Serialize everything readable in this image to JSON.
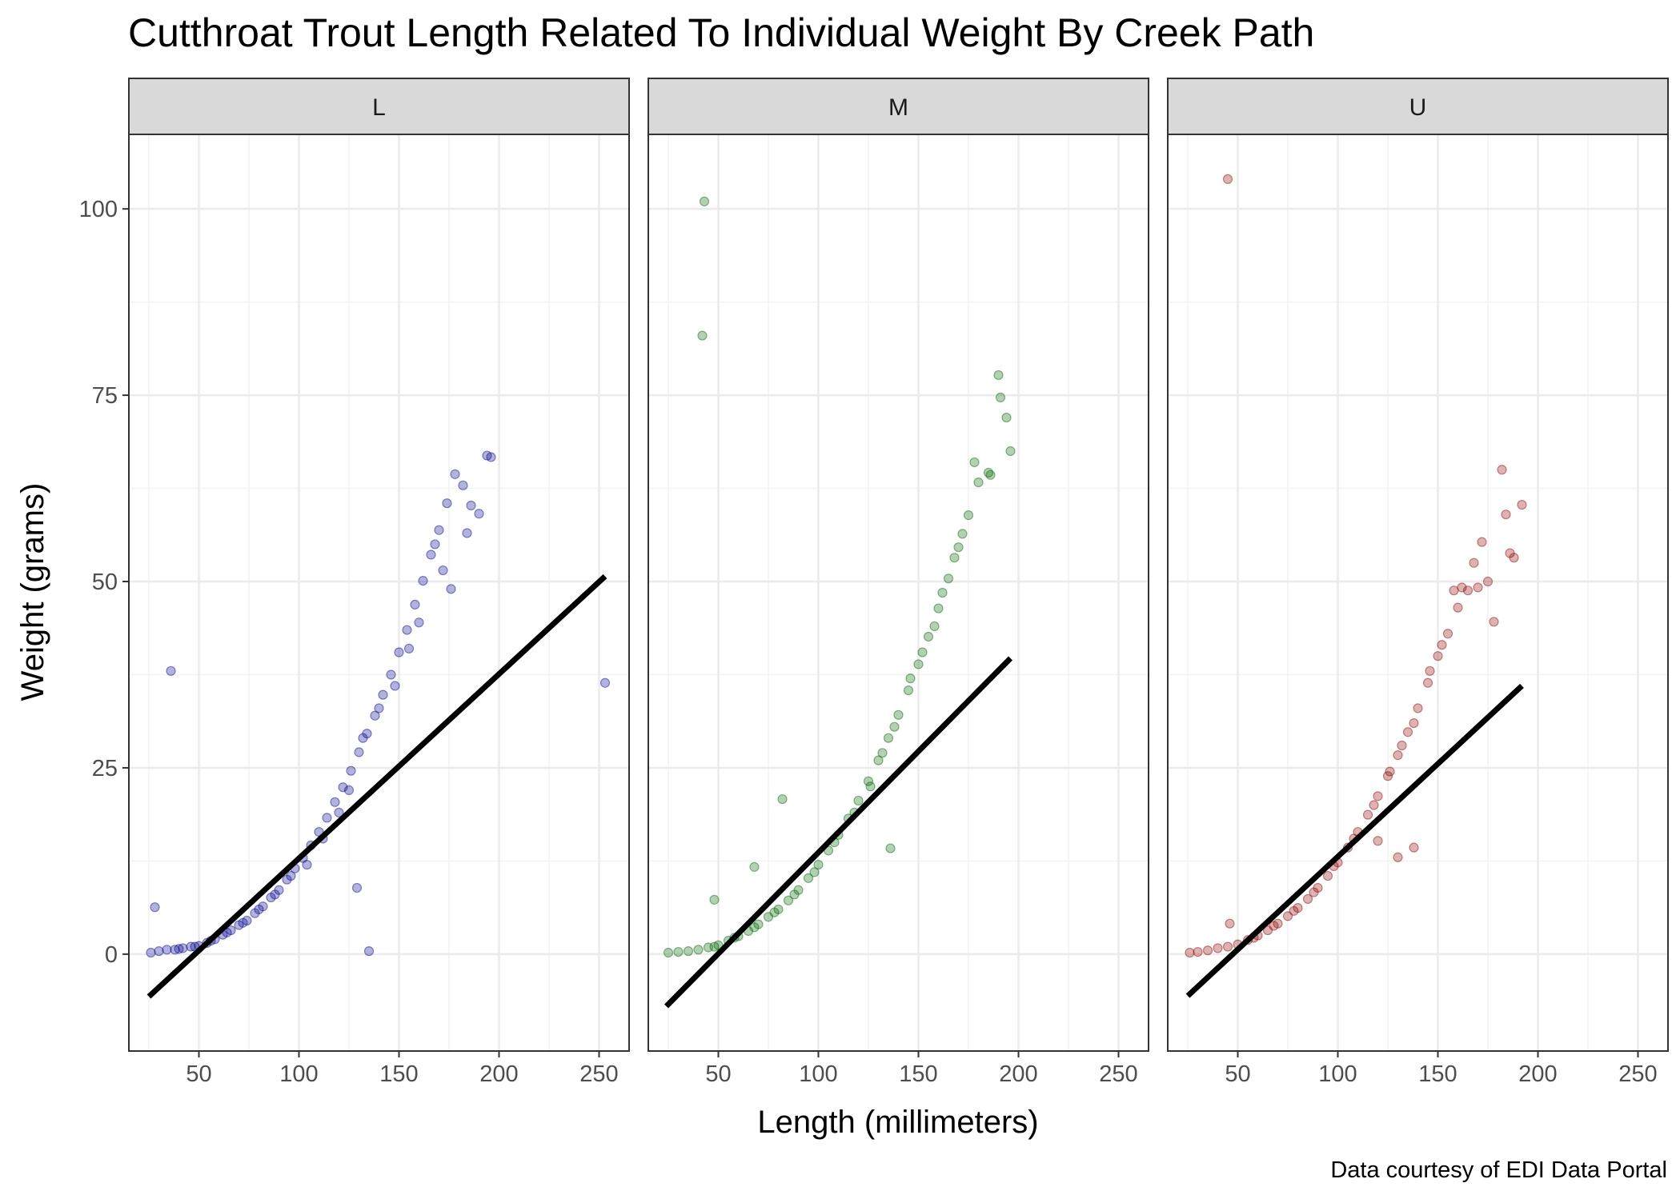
{
  "title": "Cutthroat Trout Length Related To Individual Weight By Creek Path",
  "caption": "Data courtesy of EDI Data Portal",
  "chart_data": {
    "type": "scatter",
    "title": "Cutthroat Trout Length Related To Individual Weight By Creek Path",
    "xlabel": "Length (millimeters)",
    "ylabel": "Weight (grams)",
    "xlim": [
      15,
      265
    ],
    "ylim": [
      -13,
      110
    ],
    "xticks": [
      50,
      100,
      150,
      200,
      250
    ],
    "yticks": [
      0,
      25,
      50,
      75,
      100
    ],
    "grid": true,
    "legend": "none",
    "facets": [
      {
        "label": "L",
        "color": "#00008b",
        "trend": {
          "x": [
            25,
            253
          ],
          "y": [
            -5.7,
            50.7
          ]
        },
        "points": [
          [
            26,
            0.2
          ],
          [
            30,
            0.4
          ],
          [
            34,
            0.6
          ],
          [
            38,
            0.6
          ],
          [
            42,
            0.8
          ],
          [
            46,
            1.0
          ],
          [
            50,
            1.1
          ],
          [
            54,
            1.5
          ],
          [
            58,
            2.0
          ],
          [
            62,
            2.6
          ],
          [
            66,
            3.2
          ],
          [
            70,
            3.9
          ],
          [
            74,
            4.5
          ],
          [
            78,
            5.5
          ],
          [
            82,
            6.4
          ],
          [
            86,
            7.6
          ],
          [
            90,
            8.6
          ],
          [
            94,
            10.0
          ],
          [
            98,
            11.5
          ],
          [
            102,
            12.9
          ],
          [
            106,
            14.6
          ],
          [
            110,
            16.4
          ],
          [
            114,
            18.3
          ],
          [
            118,
            20.4
          ],
          [
            122,
            22.4
          ],
          [
            126,
            24.6
          ],
          [
            130,
            27.1
          ],
          [
            134,
            29.6
          ],
          [
            138,
            32.0
          ],
          [
            142,
            34.8
          ],
          [
            146,
            37.5
          ],
          [
            150,
            40.5
          ],
          [
            154,
            43.5
          ],
          [
            158,
            46.9
          ],
          [
            162,
            50.1
          ],
          [
            166,
            53.6
          ],
          [
            170,
            56.9
          ],
          [
            174,
            60.5
          ],
          [
            178,
            64.4
          ],
          [
            182,
            62.9
          ],
          [
            186,
            60.2
          ],
          [
            190,
            59.1
          ],
          [
            194,
            66.9
          ],
          [
            196,
            66.7
          ],
          [
            168,
            55.0
          ],
          [
            172,
            51.5
          ],
          [
            176,
            49.0
          ],
          [
            184,
            56.5
          ],
          [
            160,
            44.5
          ],
          [
            155,
            41.0
          ],
          [
            148,
            36.0
          ],
          [
            140,
            33.0
          ],
          [
            132,
            29.0
          ],
          [
            125,
            22.0
          ],
          [
            120,
            19.0
          ],
          [
            112,
            15.5
          ],
          [
            104,
            12.0
          ],
          [
            96,
            10.5
          ],
          [
            88,
            8.0
          ],
          [
            80,
            6.0
          ],
          [
            72,
            4.2
          ],
          [
            64,
            2.9
          ],
          [
            56,
            1.8
          ],
          [
            48,
            1.0
          ],
          [
            40,
            0.7
          ],
          [
            36,
            38.0
          ],
          [
            28,
            6.3
          ],
          [
            129,
            8.9
          ],
          [
            135,
            0.4
          ],
          [
            253,
            36.4
          ]
        ]
      },
      {
        "label": "M",
        "color": "#006400",
        "trend": {
          "x": [
            24,
            196
          ],
          "y": [
            -7.0,
            39.7
          ]
        },
        "points": [
          [
            25,
            0.2
          ],
          [
            30,
            0.3
          ],
          [
            35,
            0.4
          ],
          [
            40,
            0.6
          ],
          [
            45,
            0.9
          ],
          [
            50,
            1.2
          ],
          [
            55,
            1.8
          ],
          [
            60,
            2.4
          ],
          [
            65,
            3.1
          ],
          [
            70,
            4.0
          ],
          [
            75,
            5.0
          ],
          [
            80,
            6.0
          ],
          [
            85,
            7.2
          ],
          [
            90,
            8.6
          ],
          [
            95,
            10.2
          ],
          [
            100,
            12.0
          ],
          [
            105,
            13.9
          ],
          [
            110,
            16.0
          ],
          [
            115,
            18.2
          ],
          [
            120,
            20.6
          ],
          [
            125,
            23.2
          ],
          [
            130,
            26.0
          ],
          [
            135,
            29.0
          ],
          [
            140,
            32.1
          ],
          [
            145,
            35.4
          ],
          [
            150,
            38.9
          ],
          [
            155,
            42.6
          ],
          [
            160,
            46.4
          ],
          [
            165,
            50.4
          ],
          [
            170,
            54.6
          ],
          [
            175,
            58.9
          ],
          [
            180,
            63.3
          ],
          [
            185,
            64.6
          ],
          [
            190,
            77.7
          ],
          [
            191,
            74.7
          ],
          [
            194,
            72.0
          ],
          [
            196,
            67.5
          ],
          [
            186,
            64.3
          ],
          [
            178,
            66.0
          ],
          [
            172,
            56.4
          ],
          [
            168,
            53.2
          ],
          [
            162,
            48.5
          ],
          [
            158,
            44.0
          ],
          [
            152,
            40.5
          ],
          [
            146,
            37.0
          ],
          [
            138,
            30.5
          ],
          [
            132,
            27.0
          ],
          [
            126,
            22.5
          ],
          [
            118,
            19.0
          ],
          [
            108,
            15.0
          ],
          [
            98,
            11.0
          ],
          [
            88,
            8.0
          ],
          [
            78,
            5.6
          ],
          [
            68,
            3.6
          ],
          [
            58,
            2.2
          ],
          [
            48,
            1.0
          ],
          [
            43,
            101.0
          ],
          [
            42,
            83.0
          ],
          [
            82,
            20.8
          ],
          [
            68,
            11.7
          ],
          [
            48,
            7.3
          ],
          [
            136,
            14.2
          ]
        ]
      },
      {
        "label": "U",
        "color": "#8b0000",
        "trend": {
          "x": [
            25,
            192
          ],
          "y": [
            -5.6,
            36.0
          ]
        },
        "points": [
          [
            26,
            0.2
          ],
          [
            30,
            0.3
          ],
          [
            35,
            0.5
          ],
          [
            40,
            0.8
          ],
          [
            45,
            1.0
          ],
          [
            50,
            1.3
          ],
          [
            55,
            1.9
          ],
          [
            60,
            2.5
          ],
          [
            65,
            3.2
          ],
          [
            70,
            4.1
          ],
          [
            75,
            5.1
          ],
          [
            80,
            6.2
          ],
          [
            85,
            7.4
          ],
          [
            90,
            8.9
          ],
          [
            95,
            10.5
          ],
          [
            100,
            12.3
          ],
          [
            105,
            14.3
          ],
          [
            110,
            16.4
          ],
          [
            115,
            18.7
          ],
          [
            120,
            21.2
          ],
          [
            125,
            23.9
          ],
          [
            130,
            26.7
          ],
          [
            135,
            29.8
          ],
          [
            140,
            33.0
          ],
          [
            145,
            36.4
          ],
          [
            150,
            40.0
          ],
          [
            155,
            43.0
          ],
          [
            160,
            46.5
          ],
          [
            165,
            48.8
          ],
          [
            170,
            49.2
          ],
          [
            175,
            50.0
          ],
          [
            178,
            44.6
          ],
          [
            182,
            65.0
          ],
          [
            184,
            59.0
          ],
          [
            186,
            53.8
          ],
          [
            188,
            53.2
          ],
          [
            192,
            60.3
          ],
          [
            172,
            55.3
          ],
          [
            168,
            52.5
          ],
          [
            162,
            49.2
          ],
          [
            158,
            48.8
          ],
          [
            152,
            41.5
          ],
          [
            146,
            38.0
          ],
          [
            138,
            31.0
          ],
          [
            132,
            28.0
          ],
          [
            126,
            24.5
          ],
          [
            118,
            20.0
          ],
          [
            108,
            15.5
          ],
          [
            98,
            11.8
          ],
          [
            88,
            8.3
          ],
          [
            78,
            5.8
          ],
          [
            68,
            3.8
          ],
          [
            58,
            2.2
          ],
          [
            45,
            104.0
          ],
          [
            46,
            4.1
          ],
          [
            138,
            14.3
          ],
          [
            130,
            13.0
          ],
          [
            120,
            15.2
          ]
        ]
      }
    ]
  }
}
